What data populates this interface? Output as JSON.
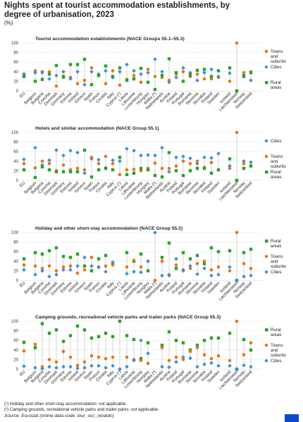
{
  "header": {
    "title": "Nights spent at tourist accommodation establishments, by degree of urbanisation, 2023",
    "unit": "(%)"
  },
  "footnotes": [
    "(¹) Holiday and other short-stay accommodation: not applicable.",
    "(²) Camping grounds, recreational vehicle parks and trailer parks: not applicable."
  ],
  "source": "Source: Eurostat (online data code: tour_occ_ninatdc)",
  "colors": {
    "towns": "#e87511",
    "cities": "#3b8fe0",
    "rural": "#2ca02c",
    "axis": "#666666",
    "grid": "#cccccc",
    "drop": "#bbbbbb"
  },
  "chart_data": [
    {
      "type": "scatter",
      "title": "Tourist accommodation establishments (NACE Groups 55.1–55.3)",
      "categories": [
        "EU",
        "Belgium",
        "Bulgaria",
        "Czechia",
        "Denmark",
        "Germany",
        "Estonia",
        "Ireland",
        "Greece",
        "Spain",
        "France",
        "Croatia",
        "Italy",
        "Cyprus (¹)",
        "Latvia",
        "Lithuania",
        "Luxembourg",
        "Hungary",
        "Malta (²)",
        "Netherlands",
        "Austria",
        "Poland",
        "Portugal",
        "Romania",
        "Slovenia",
        "Slovakia",
        "Finland",
        "Sweden",
        "Iceland",
        "Liechtenstein",
        "Norway",
        "Switzerland"
      ],
      "ylim": [
        0,
        100
      ],
      "yticks": [
        0,
        20,
        40,
        60,
        80,
        100
      ],
      "legend": [
        "Towns and suburbs",
        "Cities",
        "Rural areas"
      ],
      "series": [
        {
          "name": "Towns and suburbs",
          "color": "#e87511",
          "values": [
            35,
            42,
            40,
            40,
            10,
            28,
            28,
            15,
            22,
            48,
            32,
            15,
            42,
            12,
            24,
            32,
            18,
            45,
            30,
            28,
            22,
            35,
            40,
            30,
            35,
            25,
            25,
            28,
            20,
            100,
            38,
            40
          ]
        },
        {
          "name": "Cities",
          "color": "#3b8fe0",
          "values": [
            35,
            38,
            38,
            25,
            32,
            40,
            25,
            40,
            13,
            40,
            35,
            42,
            28,
            40,
            55,
            42,
            35,
            38,
            66,
            40,
            18,
            28,
            48,
            38,
            22,
            38,
            45,
            30,
            37,
            0,
            33,
            22
          ]
        },
        {
          "name": "Rural areas",
          "color": "#2ca02c",
          "values": [
            30,
            20,
            24,
            35,
            53,
            30,
            55,
            55,
            66,
            13,
            32,
            52,
            30,
            48,
            22,
            25,
            47,
            18,
            3,
            32,
            67,
            38,
            20,
            33,
            43,
            45,
            30,
            42,
            48,
            0,
            30,
            38
          ]
        }
      ]
    },
    {
      "type": "scatter",
      "title": "Hotels and similar accommodation (NACE Group 55.1)",
      "categories": [
        "EU",
        "Belgium",
        "Bulgaria",
        "Czechia",
        "Denmark",
        "Germany",
        "Estonia",
        "Ireland",
        "Greece",
        "Spain",
        "France",
        "Croatia",
        "Italy",
        "Cyprus (¹)",
        "Latvia",
        "Lithuania",
        "Luxembourg",
        "Hungary",
        "Malta (²)",
        "Netherlands",
        "Austria",
        "Poland",
        "Portugal",
        "Romania",
        "Slovenia",
        "Slovakia",
        "Finland",
        "Sweden",
        "Iceland",
        "Liechtenstein",
        "Norway",
        "Switzerland"
      ],
      "ylim": [
        0,
        100
      ],
      "yticks": [
        0,
        20,
        40,
        60,
        80,
        100
      ],
      "legend": [
        "Cities",
        "Towns and suburbs",
        "Rural areas"
      ],
      "series": [
        {
          "name": "Cities",
          "color": "#3b8fe0",
          "values": [
            44,
            68,
            32,
            42,
            63,
            52,
            62,
            58,
            15,
            45,
            43,
            26,
            42,
            40,
            66,
            62,
            52,
            53,
            52,
            68,
            18,
            48,
            50,
            46,
            35,
            48,
            47,
            56,
            30,
            0,
            40,
            38
          ]
        },
        {
          "name": "Towns and suburbs",
          "color": "#e87511",
          "values": [
            35,
            26,
            40,
            35,
            20,
            32,
            22,
            25,
            22,
            48,
            35,
            50,
            35,
            12,
            22,
            23,
            20,
            25,
            36,
            25,
            25,
            30,
            40,
            35,
            40,
            27,
            37,
            22,
            25,
            100,
            35,
            30
          ]
        },
        {
          "name": "Rural areas",
          "color": "#2ca02c",
          "values": [
            22,
            6,
            28,
            22,
            18,
            18,
            18,
            18,
            63,
            7,
            22,
            25,
            22,
            48,
            12,
            15,
            25,
            22,
            10,
            7,
            58,
            20,
            10,
            20,
            25,
            25,
            15,
            22,
            45,
            0,
            25,
            30
          ]
        }
      ]
    },
    {
      "type": "scatter",
      "title": "Holiday and other short-stay accommodation (NACE Group 55.2)",
      "categories": [
        "EU",
        "Belgium",
        "Bulgaria",
        "Czechia",
        "Denmark",
        "Germany",
        "Estonia",
        "Ireland",
        "Greece",
        "Spain",
        "France",
        "Croatia",
        "Italy",
        "Cyprus (¹)",
        "Latvia",
        "Lithuania",
        "Luxembourg",
        "Hungary",
        "Malta (²)",
        "Netherlands",
        "Austria",
        "Poland",
        "Portugal",
        "Romania",
        "Slovenia",
        "Slovakia",
        "Finland",
        "Sweden",
        "Iceland",
        "Liechtenstein",
        "Norway",
        "Switzerland"
      ],
      "ylim": [
        0,
        100
      ],
      "yticks": [
        0,
        20,
        40,
        60,
        80,
        100
      ],
      "legend": [
        "Rural areas",
        "Towns and suburbs",
        "Cities"
      ],
      "series": [
        {
          "name": "Rural areas",
          "color": "#2ca02c",
          "values": [
            45,
            58,
            55,
            62,
            68,
            50,
            48,
            55,
            30,
            20,
            45,
            52,
            35,
            null,
            58,
            40,
            55,
            20,
            null,
            48,
            78,
            25,
            58,
            45,
            52,
            35,
            68,
            60,
            62,
            0,
            58,
            65
          ]
        },
        {
          "name": "Towns and suburbs",
          "color": "#e87511",
          "values": [
            32,
            30,
            25,
            30,
            20,
            28,
            30,
            15,
            22,
            48,
            28,
            30,
            32,
            null,
            28,
            42,
            28,
            40,
            0,
            40,
            12,
            32,
            22,
            25,
            35,
            40,
            22,
            28,
            20,
            100,
            35,
            25
          ]
        },
        {
          "name": "Cities",
          "color": "#3b8fe0",
          "values": [
            22,
            12,
            20,
            8,
            12,
            22,
            22,
            30,
            48,
            30,
            27,
            18,
            38,
            null,
            14,
            18,
            17,
            40,
            100,
            10,
            10,
            45,
            20,
            30,
            13,
            25,
            10,
            12,
            28,
            0,
            8,
            10
          ]
        }
      ]
    },
    {
      "type": "scatter",
      "title": "Camping grounds, recreational vehicle parks and trailer parks (NACE Group 55.3)",
      "categories": [
        "EU",
        "Belgium",
        "Bulgaria",
        "Czechia",
        "Denmark",
        "Germany",
        "Estonia",
        "Ireland",
        "Greece",
        "Spain",
        "France",
        "Croatia",
        "Italy",
        "Cyprus (¹)",
        "Latvia",
        "Lithuania",
        "Luxembourg",
        "Hungary",
        "Malta (²)",
        "Netherlands",
        "Austria",
        "Poland",
        "Portugal",
        "Romania",
        "Slovenia",
        "Slovakia",
        "Finland",
        "Sweden",
        "Iceland",
        "Liechtenstein",
        "Norway",
        "Switzerland"
      ],
      "ylim": [
        0,
        100
      ],
      "yticks": [
        0,
        20,
        40,
        60,
        80,
        100
      ],
      "legend": [
        "Rural areas",
        "Towns and suburbs",
        "Cities"
      ],
      "series": [
        {
          "name": "Rural areas",
          "color": "#2ca02c",
          "values": [
            56,
            45,
            95,
            75,
            82,
            58,
            70,
            90,
            82,
            65,
            68,
            75,
            68,
            100,
            70,
            62,
            22,
            55,
            null,
            50,
            78,
            60,
            55,
            40,
            50,
            60,
            65,
            65,
            75,
            0,
            62,
            40
          ]
        },
        {
          "name": "Towns and suburbs",
          "color": "#e87511",
          "values": [
            38,
            52,
            5,
            20,
            15,
            37,
            25,
            8,
            15,
            28,
            25,
            22,
            25,
            0,
            25,
            20,
            18,
            12,
            null,
            45,
            18,
            25,
            20,
            37,
            45,
            30,
            22,
            28,
            18,
            100,
            30,
            55
          ]
        },
        {
          "name": "Cities",
          "color": "#3b8fe0",
          "values": [
            6,
            3,
            1,
            5,
            3,
            5,
            5,
            2,
            3,
            7,
            7,
            3,
            7,
            0,
            5,
            18,
            60,
            33,
            null,
            5,
            4,
            15,
            25,
            23,
            5,
            10,
            13,
            7,
            7,
            0,
            8,
            5
          ]
        }
      ]
    }
  ]
}
